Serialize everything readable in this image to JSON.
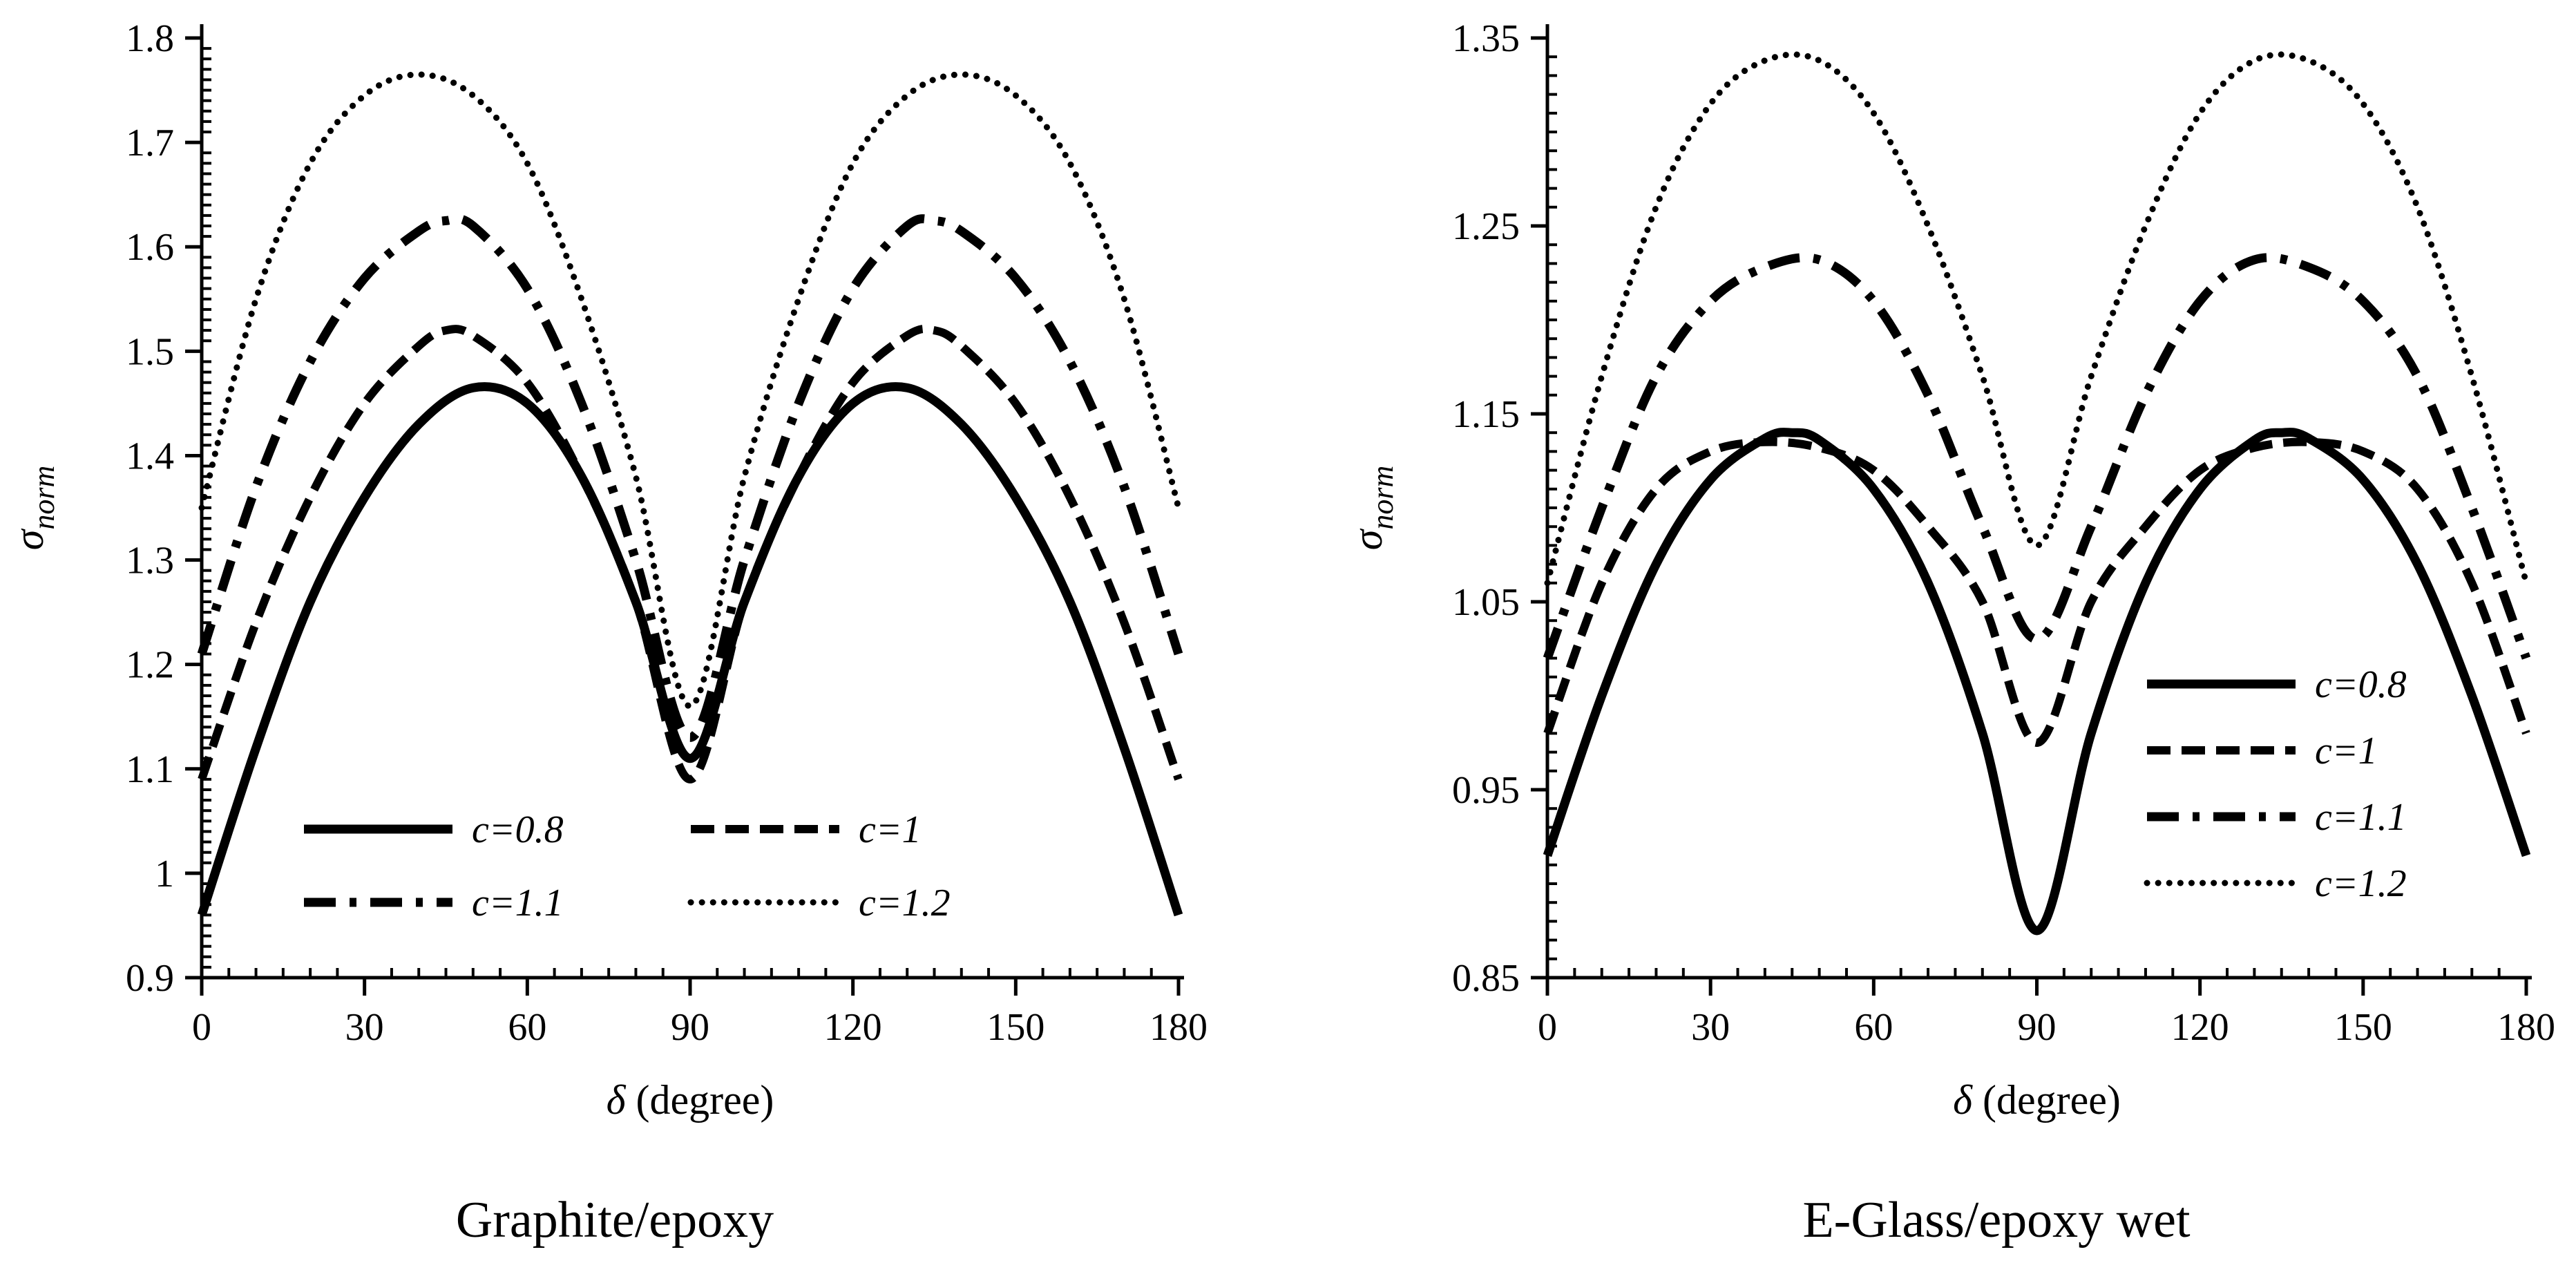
{
  "chart_data": [
    {
      "type": "line",
      "caption": "Graphite/epoxy",
      "xlabel_symbol": "δ",
      "xlabel_text": " (degree)",
      "ylabel_symbol": "σ",
      "ylabel_sub": "norm",
      "xlim": [
        0,
        180
      ],
      "ylim": [
        0.9,
        1.8
      ],
      "xticks": [
        0,
        30,
        60,
        90,
        120,
        150,
        180
      ],
      "xtick_labels": [
        "0",
        "30",
        "60",
        "90",
        "120",
        "150",
        "180"
      ],
      "yticks": [
        0.9,
        1.0,
        1.1,
        1.2,
        1.3,
        1.4,
        1.5,
        1.6,
        1.7,
        1.8
      ],
      "ytick_labels": [
        "0.9",
        "1",
        "1.1",
        "1.2",
        "1.3",
        "1.4",
        "1.5",
        "1.6",
        "1.7",
        "1.8"
      ],
      "legend_position": "bottom-center",
      "legend_layout": "grid-2col",
      "series": [
        {
          "name": "c=0.8",
          "style": "solid",
          "x": [
            0,
            10,
            20,
            30,
            40,
            50,
            60,
            70,
            80,
            90,
            100,
            110,
            120,
            130,
            140,
            150,
            160,
            170,
            180
          ],
          "y": [
            0.96,
            1.12,
            1.26,
            1.36,
            1.43,
            1.465,
            1.45,
            1.38,
            1.26,
            1.11,
            1.26,
            1.38,
            1.45,
            1.465,
            1.43,
            1.36,
            1.26,
            1.12,
            0.96
          ]
        },
        {
          "name": "c=1",
          "style": "dashed",
          "x": [
            0,
            10,
            20,
            30,
            40,
            45,
            50,
            60,
            70,
            80,
            90,
            100,
            110,
            120,
            130,
            135,
            140,
            150,
            160,
            170,
            180
          ],
          "y": [
            1.09,
            1.24,
            1.36,
            1.45,
            1.505,
            1.52,
            1.515,
            1.47,
            1.38,
            1.26,
            1.09,
            1.26,
            1.38,
            1.47,
            1.515,
            1.52,
            1.505,
            1.45,
            1.36,
            1.24,
            1.09
          ]
        },
        {
          "name": "c=1.1",
          "style": "dashdot",
          "x": [
            0,
            10,
            20,
            30,
            40,
            45,
            50,
            60,
            70,
            80,
            90,
            100,
            110,
            120,
            130,
            135,
            140,
            150,
            160,
            170,
            180
          ],
          "y": [
            1.21,
            1.37,
            1.49,
            1.57,
            1.615,
            1.625,
            1.62,
            1.56,
            1.45,
            1.3,
            1.13,
            1.3,
            1.45,
            1.56,
            1.62,
            1.625,
            1.615,
            1.57,
            1.49,
            1.37,
            1.21
          ]
        },
        {
          "name": "c=1.2",
          "style": "dotted",
          "x": [
            0,
            10,
            20,
            30,
            40,
            50,
            60,
            70,
            80,
            90,
            100,
            110,
            120,
            130,
            140,
            150,
            160,
            170,
            180
          ],
          "y": [
            1.35,
            1.55,
            1.68,
            1.745,
            1.765,
            1.745,
            1.68,
            1.55,
            1.38,
            1.16,
            1.38,
            1.55,
            1.68,
            1.745,
            1.765,
            1.745,
            1.68,
            1.55,
            1.35
          ]
        }
      ]
    },
    {
      "type": "line",
      "caption": "E-Glass/epoxy wet",
      "xlabel_symbol": "δ",
      "xlabel_text": " (degree)",
      "ylabel_symbol": "σ",
      "ylabel_sub": "norm",
      "xlim": [
        0,
        180
      ],
      "ylim": [
        0.85,
        1.35
      ],
      "xticks": [
        0,
        30,
        60,
        90,
        120,
        150,
        180
      ],
      "xtick_labels": [
        "0",
        "30",
        "60",
        "90",
        "120",
        "150",
        "180"
      ],
      "yticks": [
        0.85,
        0.95,
        1.05,
        1.15,
        1.25,
        1.35
      ],
      "ytick_labels": [
        "0.85",
        "0.95",
        "1.05",
        "1.15",
        "1.25",
        "1.35"
      ],
      "legend_position": "right-middle",
      "legend_layout": "single-column",
      "series": [
        {
          "name": "c=0.8",
          "style": "solid",
          "x": [
            0,
            10,
            20,
            30,
            40,
            45,
            50,
            60,
            70,
            80,
            90,
            100,
            110,
            120,
            130,
            135,
            140,
            150,
            160,
            170,
            180
          ],
          "y": [
            0.915,
            1.0,
            1.07,
            1.115,
            1.137,
            1.14,
            1.136,
            1.11,
            1.06,
            0.98,
            0.875,
            0.98,
            1.06,
            1.11,
            1.136,
            1.14,
            1.137,
            1.115,
            1.07,
            1.0,
            0.915
          ]
        },
        {
          "name": "c=1",
          "style": "dashed",
          "x": [
            0,
            10,
            20,
            30,
            40,
            50,
            60,
            70,
            80,
            90,
            100,
            110,
            120,
            130,
            140,
            150,
            160,
            170,
            180
          ],
          "y": [
            0.98,
            1.06,
            1.11,
            1.13,
            1.135,
            1.132,
            1.12,
            1.09,
            1.05,
            0.975,
            1.05,
            1.09,
            1.12,
            1.132,
            1.135,
            1.13,
            1.11,
            1.06,
            0.98
          ]
        },
        {
          "name": "c=1.1",
          "style": "dashdot",
          "x": [
            0,
            10,
            20,
            30,
            40,
            50,
            60,
            70,
            80,
            90,
            100,
            110,
            120,
            130,
            140,
            150,
            160,
            170,
            180
          ],
          "y": [
            1.02,
            1.1,
            1.17,
            1.21,
            1.228,
            1.232,
            1.21,
            1.16,
            1.09,
            1.03,
            1.09,
            1.16,
            1.21,
            1.232,
            1.228,
            1.21,
            1.17,
            1.1,
            1.02
          ]
        },
        {
          "name": "c=1.2",
          "style": "dotted",
          "x": [
            0,
            10,
            20,
            30,
            40,
            50,
            60,
            70,
            80,
            90,
            100,
            110,
            120,
            130,
            140,
            150,
            160,
            170,
            180
          ],
          "y": [
            1.06,
            1.17,
            1.26,
            1.315,
            1.338,
            1.338,
            1.31,
            1.25,
            1.17,
            1.08,
            1.17,
            1.25,
            1.31,
            1.338,
            1.338,
            1.315,
            1.26,
            1.17,
            1.06
          ]
        }
      ]
    }
  ]
}
